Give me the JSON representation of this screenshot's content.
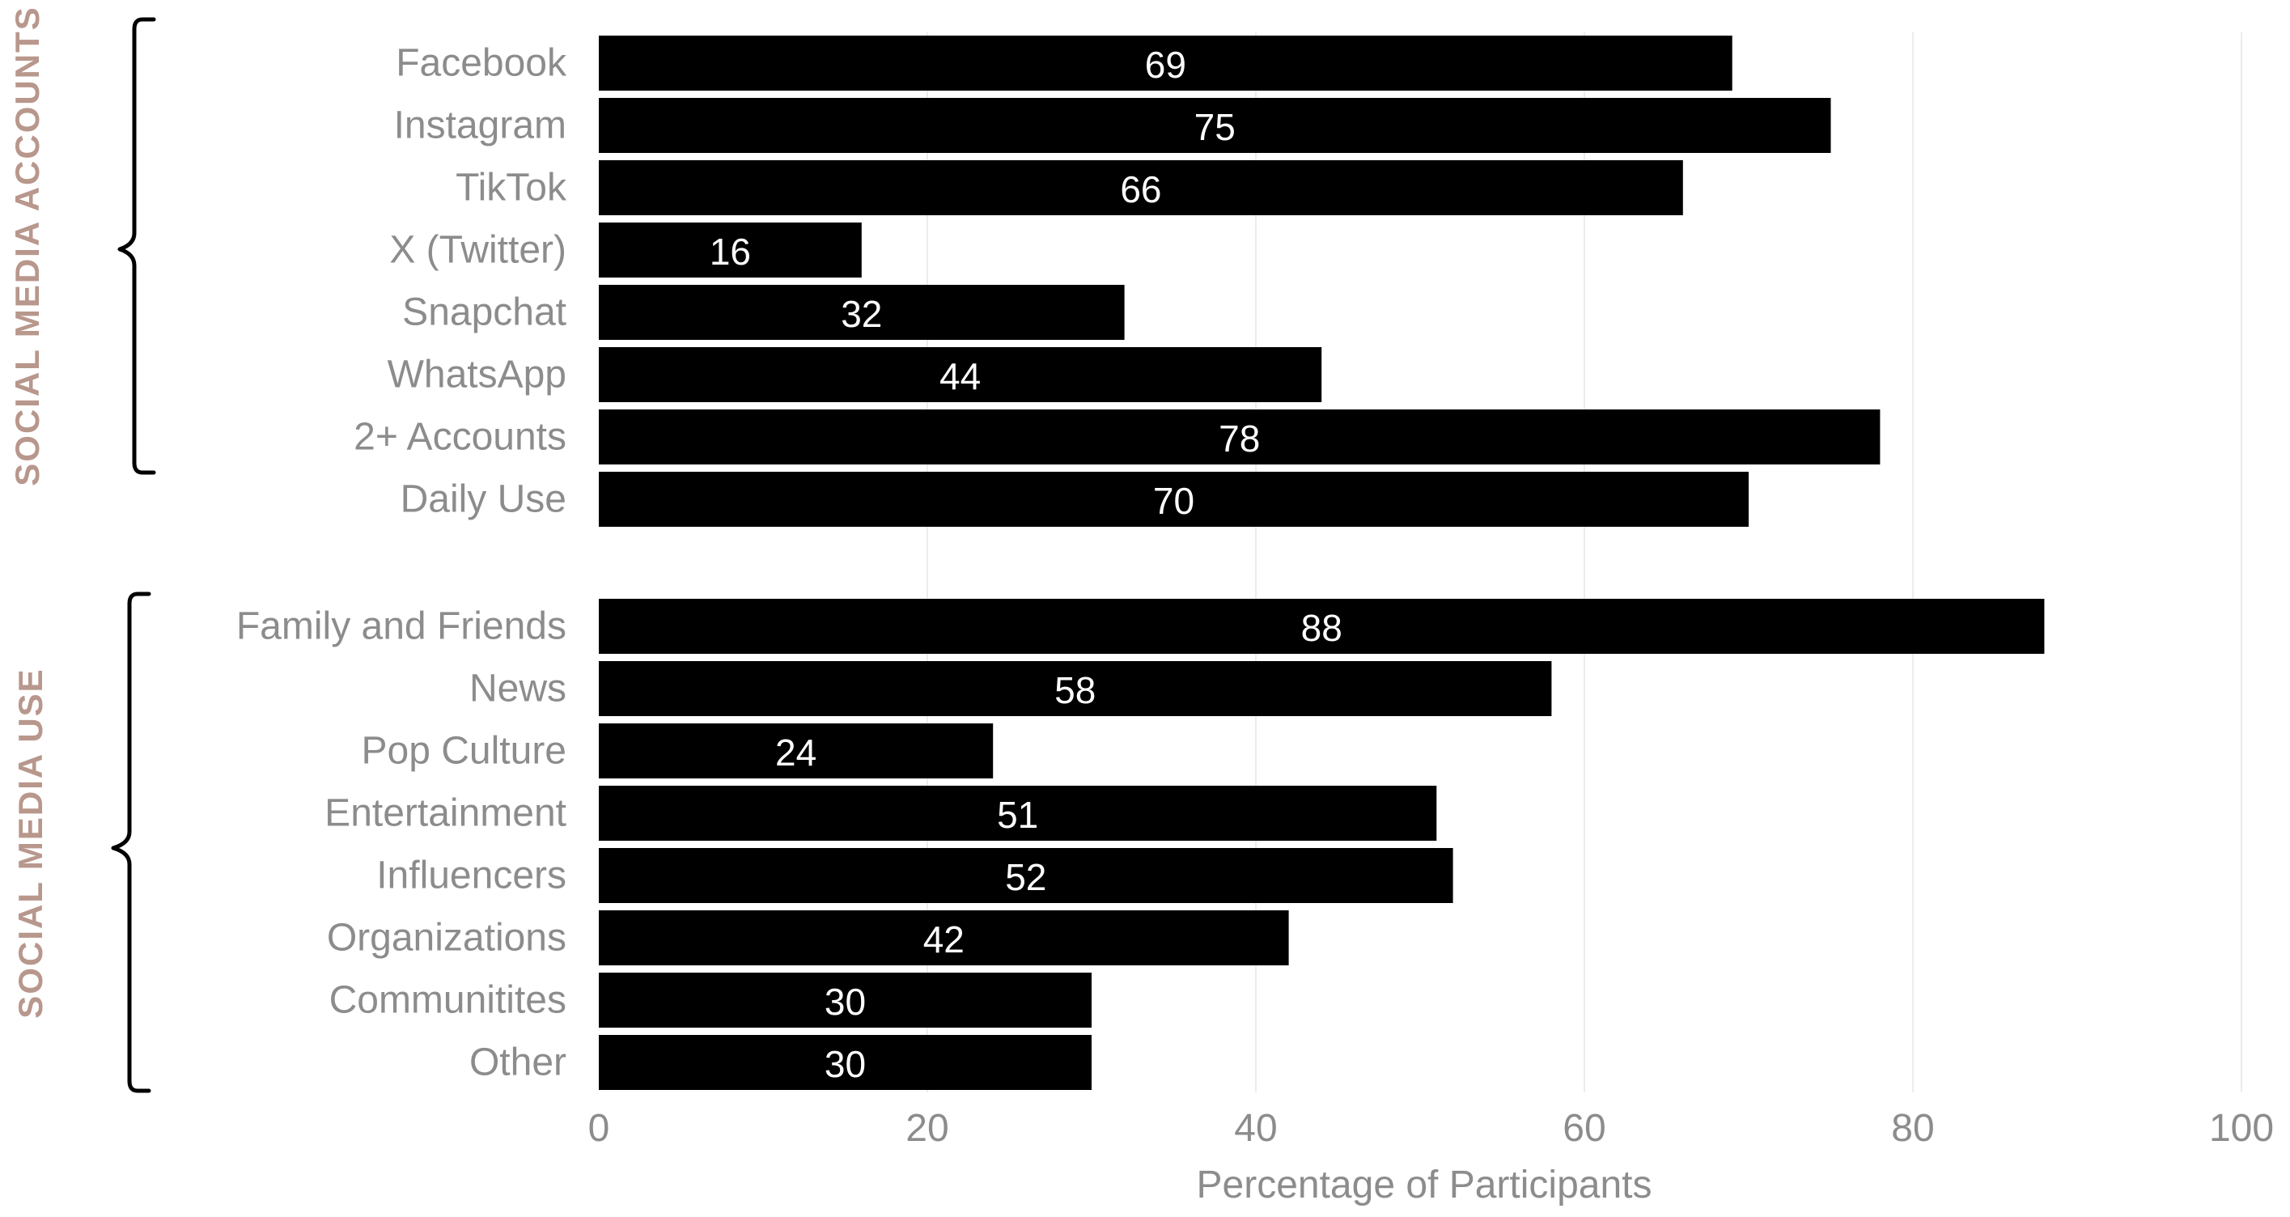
{
  "chart_data": {
    "type": "bar",
    "orientation": "horizontal",
    "xlabel": "Percentage of Participants",
    "xlim": [
      0,
      100
    ],
    "xticks": [
      0,
      20,
      40,
      60,
      80,
      100
    ],
    "grid": true,
    "bar_color": "#000000",
    "value_label_color": "#ffffff",
    "group_label_color": "#b8978c",
    "groups": [
      {
        "label": "SOCIAL MEDIA ACCOUNTS",
        "categories": [
          "Facebook",
          "Instagram",
          "TikTok",
          "X (Twitter)",
          "Snapchat",
          "WhatsApp",
          "2+ Accounts",
          "Daily Use"
        ],
        "values": [
          69,
          75,
          66,
          16,
          32,
          44,
          78,
          70
        ]
      },
      {
        "label": "SOCIAL MEDIA USE",
        "categories": [
          "Family and Friends",
          "News",
          "Pop Culture",
          "Entertainment",
          "Influencers",
          "Organizations",
          "Communitites",
          "Other"
        ],
        "values": [
          88,
          58,
          24,
          51,
          52,
          42,
          30,
          30
        ]
      }
    ]
  }
}
